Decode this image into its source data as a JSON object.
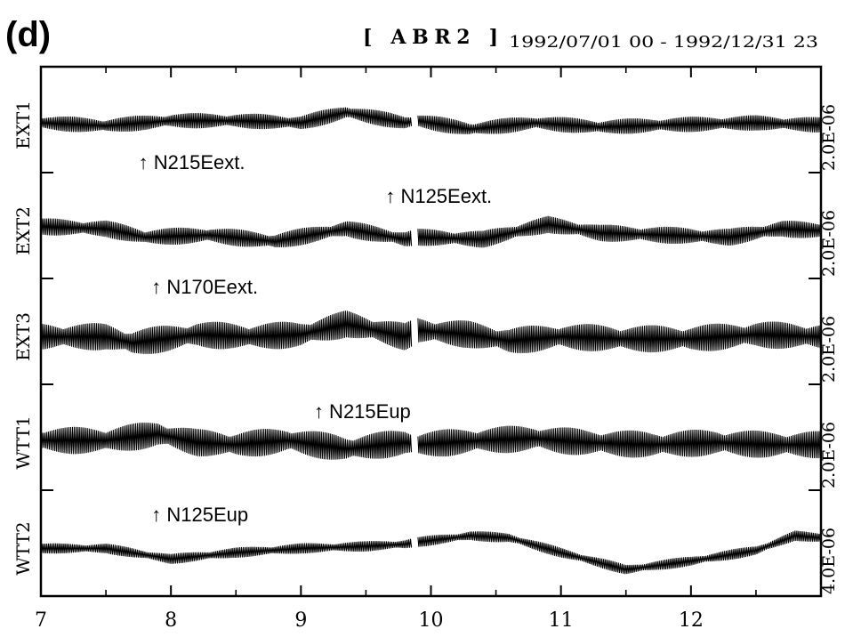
{
  "panel_label": "(d)",
  "chart_data": {
    "type": "line",
    "station": "[ ABR2 ]",
    "period": "1992/07/01 00 - 1992/12/31 23",
    "x_ticks": [
      "7",
      "8",
      "9",
      "10",
      "11",
      "12"
    ],
    "xlim": [
      7,
      13
    ],
    "gap": [
      9.85,
      9.9
    ],
    "series": [
      {
        "name": "EXT1",
        "scale": "2.0E-06",
        "annotation": "↑ N215Eext.",
        "annotation_x": 7.75,
        "amplitude": 0.18,
        "trend": [
          [
            7,
            0.05
          ],
          [
            7.5,
            -0.02
          ],
          [
            8,
            0.1
          ],
          [
            8.5,
            0.1
          ],
          [
            9,
            0.05
          ],
          [
            9.35,
            0.3
          ],
          [
            9.8,
            0.05
          ],
          [
            9.9,
            0.1
          ],
          [
            10.3,
            -0.1
          ],
          [
            10.8,
            0.05
          ],
          [
            11.3,
            -0.05
          ],
          [
            11.8,
            0.0
          ],
          [
            12.5,
            0.05
          ],
          [
            13,
            0.0
          ]
        ]
      },
      {
        "name": "EXT2",
        "scale": "2.0E-06",
        "annotation": "↑ N125Eext.",
        "annotation_x": 9.65,
        "amplitude": 0.2,
        "trend": [
          [
            7,
            0.1
          ],
          [
            7.5,
            0.05
          ],
          [
            7.8,
            -0.15
          ],
          [
            8.3,
            -0.1
          ],
          [
            8.8,
            -0.25
          ],
          [
            9.35,
            0.05
          ],
          [
            9.8,
            -0.2
          ],
          [
            9.9,
            -0.15
          ],
          [
            10.4,
            -0.2
          ],
          [
            10.9,
            0.15
          ],
          [
            11.3,
            -0.05
          ],
          [
            11.8,
            -0.1
          ],
          [
            12.3,
            -0.15
          ],
          [
            12.7,
            0.05
          ],
          [
            13,
            0.0
          ]
        ]
      },
      {
        "name": "EXT3",
        "scale": "2.0E-06",
        "annotation": "↑ N170Eext.",
        "annotation_x": 7.85,
        "amplitude": 0.32,
        "trend": [
          [
            7,
            0.0
          ],
          [
            7.5,
            0.0
          ],
          [
            7.7,
            -0.15
          ],
          [
            8.2,
            0.05
          ],
          [
            8.6,
            0.0
          ],
          [
            9.0,
            0.05
          ],
          [
            9.35,
            0.3
          ],
          [
            9.8,
            0.0
          ],
          [
            9.9,
            0.15
          ],
          [
            10.3,
            0.05
          ],
          [
            10.6,
            -0.1
          ],
          [
            11.0,
            0.0
          ],
          [
            11.5,
            -0.05
          ],
          [
            12.0,
            -0.05
          ],
          [
            12.5,
            0.05
          ],
          [
            13,
            0.0
          ]
        ]
      },
      {
        "name": "WTT1",
        "scale": "2.0E-06",
        "annotation": "↑ N215Eup",
        "annotation_x": 9.1,
        "amplitude": 0.32,
        "trend": [
          [
            7,
            0.05
          ],
          [
            7.5,
            0.05
          ],
          [
            7.9,
            0.2
          ],
          [
            8.2,
            0.0
          ],
          [
            8.5,
            -0.05
          ],
          [
            8.9,
            0.05
          ],
          [
            9.35,
            -0.15
          ],
          [
            9.8,
            0.0
          ],
          [
            9.9,
            -0.05
          ],
          [
            10.4,
            0.05
          ],
          [
            10.8,
            0.1
          ],
          [
            11.2,
            0.0
          ],
          [
            11.7,
            -0.05
          ],
          [
            12.2,
            0.0
          ],
          [
            12.6,
            -0.05
          ],
          [
            13,
            -0.05
          ]
        ]
      },
      {
        "name": "WTT2",
        "scale": "4.0E-06",
        "annotation": "↑ N125Eup",
        "annotation_x": 7.85,
        "amplitude": 0.12,
        "trend": [
          [
            7,
            0.0
          ],
          [
            7.5,
            0.0
          ],
          [
            8,
            -0.25
          ],
          [
            8.5,
            -0.1
          ],
          [
            9,
            0.0
          ],
          [
            9.5,
            0.05
          ],
          [
            9.8,
            0.1
          ],
          [
            9.9,
            0.15
          ],
          [
            10.3,
            0.3
          ],
          [
            10.6,
            0.25
          ],
          [
            11.0,
            -0.1
          ],
          [
            11.5,
            -0.5
          ],
          [
            12.0,
            -0.3
          ],
          [
            12.5,
            -0.05
          ],
          [
            12.8,
            0.3
          ],
          [
            13,
            0.25
          ]
        ]
      }
    ]
  }
}
